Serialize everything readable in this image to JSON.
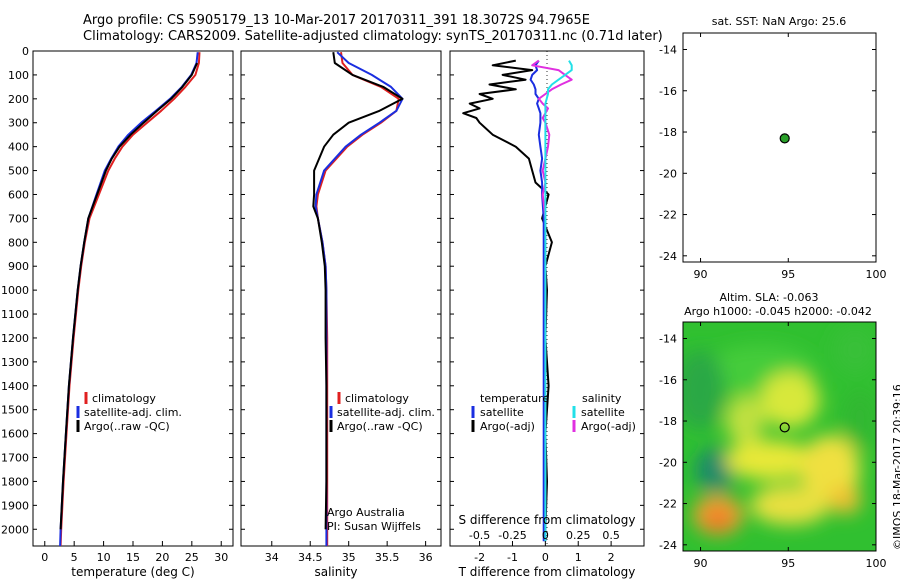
{
  "title": {
    "line1": "Argo profile: CS 5905179_13 10-Mar-2017 20170311_391 18.3072S 94.7965E",
    "line2": "Climatology: CARS2009. Satellite-adjusted climatology: synTS_20170311.nc (0.71d later)"
  },
  "colors": {
    "climatology": "#e02020",
    "satellite_adj": "#1a2ee0",
    "argo": "#000000",
    "sal_satellite": "#22e0e8",
    "sal_argo": "#e030e0",
    "float_marker": "#2aa02a"
  },
  "legend1": {
    "clim": "climatology",
    "sat": "satellite-adj. clim.",
    "argo": "Argo(..raw -QC)"
  },
  "legend3": {
    "temp_head": "temperature",
    "sal_head": "salinity",
    "t_sat": "satellite",
    "t_argo": "Argo(-adj)",
    "s_sat": "satellite",
    "s_argo": "Argo(-adj)"
  },
  "credit": {
    "line1": "Argo Australia",
    "line2": "PI: Susan Wijffels"
  },
  "stamp": "©IMOS 18-Mar-2017 20:39:16",
  "chart_data": [
    {
      "type": "line",
      "xlabel": "temperature (deg C)",
      "ylabel": "",
      "xlim": [
        -2,
        32
      ],
      "ylim": [
        2070,
        0
      ],
      "xticks": [
        0,
        5,
        10,
        15,
        20,
        25,
        30
      ],
      "yticks": [
        0,
        100,
        200,
        300,
        400,
        500,
        600,
        700,
        800,
        900,
        1000,
        1100,
        1200,
        1300,
        1400,
        1500,
        1600,
        1700,
        1800,
        1900,
        2000
      ],
      "x": [
        5,
        50,
        100,
        150,
        200,
        250,
        300,
        350,
        400,
        450,
        500,
        600,
        700,
        800,
        900,
        1000,
        1200,
        1400,
        1600,
        1800,
        2000,
        2070
      ],
      "series": [
        {
          "name": "climatology",
          "values": [
            26.3,
            26.2,
            25.6,
            23.9,
            22.0,
            19.8,
            17.4,
            15.0,
            13.2,
            11.9,
            10.8,
            9.2,
            7.6,
            6.8,
            6.2,
            5.7,
            4.9,
            4.2,
            3.7,
            3.2,
            2.8,
            2.7
          ]
        },
        {
          "name": "satellite-adj. clim.",
          "values": [
            26.0,
            25.8,
            24.9,
            23.3,
            21.3,
            18.9,
            16.4,
            14.2,
            12.5,
            11.3,
            10.2,
            8.8,
            7.4,
            6.7,
            6.1,
            5.6,
            4.8,
            4.1,
            3.6,
            3.1,
            2.7,
            2.6
          ]
        },
        {
          "name": "Argo(..raw -QC)",
          "values": [
            null,
            25.9,
            25.0,
            23.4,
            21.5,
            19.1,
            16.8,
            14.6,
            12.7,
            11.4,
            10.4,
            8.9,
            7.4,
            6.7,
            6.1,
            5.6,
            4.8,
            4.1,
            3.6,
            3.1,
            2.7,
            null
          ]
        }
      ]
    },
    {
      "type": "line",
      "xlabel": "salinity",
      "ylabel": "",
      "xlim": [
        33.6,
        36.2
      ],
      "ylim": [
        2070,
        0
      ],
      "xticks": [
        34,
        34.5,
        35,
        35.5,
        36
      ],
      "x": [
        5,
        50,
        100,
        150,
        200,
        250,
        300,
        350,
        400,
        500,
        600,
        650,
        700,
        800,
        900,
        1000,
        1200,
        1400,
        1600,
        1800,
        2000,
        2070
      ],
      "series": [
        {
          "name": "climatology",
          "values": [
            34.9,
            34.92,
            35.05,
            35.42,
            35.65,
            35.62,
            35.42,
            35.18,
            34.98,
            34.7,
            34.6,
            34.58,
            34.6,
            34.66,
            34.7,
            34.71,
            34.72,
            34.72,
            34.72,
            34.72,
            34.72,
            34.72
          ]
        },
        {
          "name": "satellite-adj. clim.",
          "values": [
            34.85,
            35.0,
            35.3,
            35.55,
            35.7,
            35.62,
            35.4,
            35.16,
            34.96,
            34.68,
            34.58,
            34.57,
            34.6,
            34.66,
            34.7,
            34.71,
            34.71,
            34.71,
            34.71,
            34.71,
            34.71,
            34.71
          ]
        },
        {
          "name": "Argo(..raw -QC)",
          "values": [
            34.8,
            34.82,
            35.05,
            35.45,
            35.7,
            35.4,
            35.0,
            34.8,
            34.68,
            34.55,
            34.55,
            34.54,
            34.6,
            34.65,
            34.69,
            34.7,
            34.7,
            34.71,
            34.71,
            34.71,
            34.7,
            null
          ]
        }
      ]
    },
    {
      "type": "line",
      "xlabel": "T difference from climatology",
      "xlabel_top": "S difference from climatology",
      "xlim": [
        -2.9,
        3.0
      ],
      "ylim": [
        2070,
        0
      ],
      "xticks": [
        -2,
        -1,
        0,
        1,
        2
      ],
      "xticks_top": [
        "-0.5",
        "-0.25",
        "0",
        "0.25",
        "0.5"
      ],
      "x": [
        40,
        60,
        80,
        100,
        120,
        140,
        160,
        180,
        200,
        220,
        240,
        260,
        280,
        300,
        350,
        400,
        450,
        500,
        550,
        600,
        700,
        800,
        900,
        1000,
        1200,
        1400,
        1600,
        1800,
        2000,
        2050
      ],
      "series": [
        {
          "name": "temperature satellite",
          "values": [
            -0.2,
            -0.3,
            -0.25,
            -0.4,
            -0.45,
            -0.35,
            -0.3,
            -0.3,
            -0.2,
            -0.25,
            -0.2,
            -0.15,
            -0.15,
            -0.15,
            -0.2,
            -0.15,
            -0.1,
            -0.15,
            -0.1,
            -0.1,
            -0.05,
            -0.05,
            -0.05,
            -0.05,
            -0.05,
            -0.05,
            -0.05,
            -0.05,
            -0.05,
            -0.05
          ]
        },
        {
          "name": "temperature Argo(-adj)",
          "values": [
            -0.9,
            -1.6,
            -0.4,
            -1.3,
            -0.6,
            -1.7,
            -0.9,
            -2.0,
            -1.6,
            -2.3,
            -2.0,
            -2.5,
            -2.1,
            -2.0,
            -1.6,
            -0.9,
            -0.5,
            -0.4,
            -0.3,
            0.1,
            -0.1,
            0.2,
            0.0,
            0.05,
            0.0,
            0.1,
            0.0,
            0.05,
            0.0,
            0.0
          ]
        },
        {
          "name": "salinity satellite",
          "values": [
            0.18,
            0.2,
            0.2,
            0.15,
            0.1,
            0.05,
            0.02,
            0.02,
            0.01,
            0.0,
            0.0,
            0.0,
            0.0,
            0.0,
            0.0,
            0.0,
            0.0,
            0.0,
            0.0,
            0.0,
            0.0,
            0.0,
            0.0,
            0.0,
            0.0,
            0.0,
            0.0,
            0.0,
            0.0,
            0.0
          ]
        },
        {
          "name": "salinity Argo(-adj)",
          "values": [
            -0.05,
            -0.1,
            0.1,
            0.15,
            0.2,
            0.12,
            0.05,
            0.0,
            -0.05,
            -0.02,
            0.02,
            0.0,
            -0.02,
            0.0,
            0.03,
            0.02,
            0.0,
            -0.02,
            0.0,
            -0.02,
            0.0,
            0.0,
            0.0,
            0.0,
            0.0,
            0.0,
            0.0,
            0.0,
            0.0,
            0.0
          ]
        }
      ]
    },
    {
      "type": "scatter",
      "title": "sat. SST: NaN Argo: 25.6",
      "xlim": [
        89,
        100
      ],
      "ylim": [
        -24.3,
        -13.2
      ],
      "xticks": [
        90,
        95,
        100
      ],
      "yticks": [
        -14,
        -16,
        -18,
        -20,
        -22,
        -24
      ],
      "points": [
        {
          "x": 94.7965,
          "y": -18.3072
        }
      ]
    },
    {
      "type": "heatmap",
      "title_line1": "Altim. SLA: -0.063",
      "title_line2": "Argo h1000: -0.045 h2000: -0.042",
      "xlim": [
        89,
        100
      ],
      "ylim": [
        -24.3,
        -13.2
      ],
      "xticks": [
        90,
        95,
        100
      ],
      "yticks": [
        -14,
        -16,
        -18,
        -20,
        -22,
        -24
      ],
      "points": [
        {
          "x": 94.7965,
          "y": -18.3072
        }
      ]
    }
  ]
}
